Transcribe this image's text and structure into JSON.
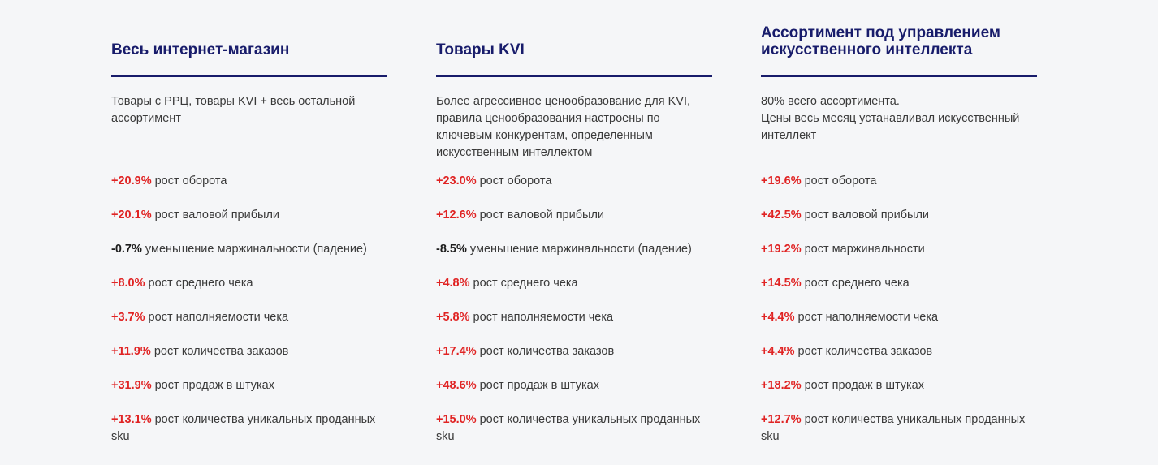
{
  "colors": {
    "heading": "#181c6b",
    "positive": "#e02424",
    "negative": "#1e1e1e",
    "text": "#3a3a3a",
    "background": "#f5f6f8"
  },
  "columns": [
    {
      "title": "Весь интернет-магазин",
      "description": [
        "Товары с РРЦ, товары KVI + весь остальной ассортимент"
      ],
      "metrics": [
        {
          "value": "+20.9%",
          "label": " рост оборота",
          "sign": "positive"
        },
        {
          "value": "+20.1%",
          "label": " рост валовой прибыли",
          "sign": "positive"
        },
        {
          "value": "-0.7%",
          "label": " уменьшение маржинальности (падение)",
          "sign": "negative"
        },
        {
          "value": "+8.0%",
          "label": " рост среднего чека",
          "sign": "positive"
        },
        {
          "value": "+3.7%",
          "label": " рост наполняемости чека",
          "sign": "positive"
        },
        {
          "value": "+11.9%",
          "label": " рост количества заказов",
          "sign": "positive"
        },
        {
          "value": "+31.9%",
          "label": " рост продаж в штуках",
          "sign": "positive"
        },
        {
          "value": "+13.1%",
          "label": " рост количества уникальных проданных sku",
          "sign": "positive"
        }
      ]
    },
    {
      "title": "Товары KVI",
      "description": [
        "Более агрессивное ценообразование для KVI, правила ценообразования настроены по ключевым конкурентам, определенным искусственным интеллектом"
      ],
      "metrics": [
        {
          "value": "+23.0%",
          "label": " рост оборота",
          "sign": "positive"
        },
        {
          "value": "+12.6%",
          "label": " рост валовой прибыли",
          "sign": "positive"
        },
        {
          "value": "-8.5%",
          "label": " уменьшение маржинальности (падение)",
          "sign": "negative"
        },
        {
          "value": "+4.8%",
          "label": " рост среднего чека",
          "sign": "positive"
        },
        {
          "value": "+5.8%",
          "label": " рост наполняемости чека",
          "sign": "positive"
        },
        {
          "value": "+17.4%",
          "label": " рост количества заказов",
          "sign": "positive"
        },
        {
          "value": "+48.6%",
          "label": " рост продаж в штуках",
          "sign": "positive"
        },
        {
          "value": "+15.0%",
          "label": " рост количества уникальных проданных sku",
          "sign": "positive"
        }
      ]
    },
    {
      "title": "Ассортимент под управлением искусственного интеллекта",
      "description": [
        "80% всего ассортимента.",
        "Цены весь месяц устанавливал искусственный интеллект"
      ],
      "metrics": [
        {
          "value": "+19.6%",
          "label": " рост оборота",
          "sign": "positive"
        },
        {
          "value": "+42.5%",
          "label": " рост валовой прибыли",
          "sign": "positive"
        },
        {
          "value": "+19.2%",
          "label": " рост маржинальности",
          "sign": "positive"
        },
        {
          "value": "+14.5%",
          "label": " рост среднего чека",
          "sign": "positive"
        },
        {
          "value": "+4.4%",
          "label": " рост наполняемости чека",
          "sign": "positive"
        },
        {
          "value": "+4.4%",
          "label": " рост количества заказов",
          "sign": "positive"
        },
        {
          "value": "+18.2%",
          "label": " рост продаж в штуках",
          "sign": "positive"
        },
        {
          "value": "+12.7%",
          "label": " рост количества уникальных проданных sku",
          "sign": "positive"
        }
      ]
    }
  ]
}
